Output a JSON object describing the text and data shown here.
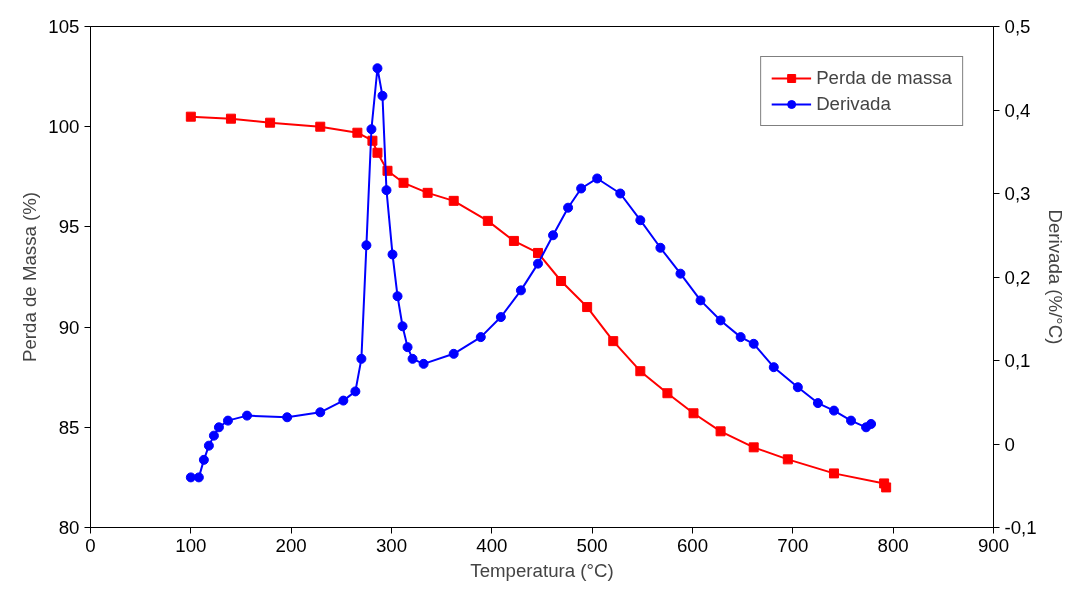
{
  "chart_data": {
    "type": "line",
    "xlabel": "Temperatura (°C)",
    "ylabel": "Perda de Massa (%)",
    "y2label": "Derivada (%/°C)",
    "xlim": [
      0,
      900
    ],
    "xticks": [
      0,
      100,
      200,
      300,
      400,
      500,
      600,
      700,
      800,
      900
    ],
    "ylim": [
      80,
      105
    ],
    "yticks": [
      80,
      85,
      90,
      95,
      100,
      105
    ],
    "y2lim": [
      -0.1,
      0.5
    ],
    "y2ticks": [
      {
        "value": -0.1,
        "label": "-0,1"
      },
      {
        "value": 0,
        "label": "0"
      },
      {
        "value": 0.1,
        "label": "0,1"
      },
      {
        "value": 0.2,
        "label": "0,2"
      },
      {
        "value": 0.3,
        "label": "0,3"
      },
      {
        "value": 0.4,
        "label": "0,4"
      },
      {
        "value": 0.5,
        "label": "0,5"
      }
    ],
    "grid": false,
    "legend": "top right",
    "series": [
      {
        "name": "Perda de massa",
        "color": "#ff0000",
        "marker": "square",
        "x": [
          100,
          140,
          179,
          229,
          266,
          281,
          286,
          296,
          312,
          336,
          362,
          396,
          422,
          446,
          469,
          495,
          521,
          548,
          575,
          601,
          628,
          661,
          695,
          741,
          791,
          793
        ],
        "values": [
          100.5,
          100.4,
          100.2,
          100.0,
          99.7,
          99.3,
          98.7,
          97.8,
          97.2,
          96.7,
          96.3,
          95.3,
          94.3,
          93.7,
          92.3,
          91.0,
          89.3,
          87.8,
          86.7,
          85.7,
          84.8,
          84.0,
          83.4,
          82.7,
          82.2,
          82.0
        ]
      },
      {
        "name": "Derivada",
        "color": "#0000ff",
        "marker": "circle",
        "axis": "y2",
        "x": [
          100,
          108,
          113,
          118,
          123,
          128,
          137,
          156,
          196,
          229,
          252,
          264,
          270,
          275,
          280,
          286,
          291,
          295,
          301,
          306,
          311,
          316,
          321,
          332,
          362,
          389,
          409,
          429,
          446,
          461,
          476,
          489,
          505,
          528,
          548,
          568,
          588,
          608,
          628,
          648,
          661,
          681,
          705,
          725,
          741,
          758,
          773,
          778
        ],
        "values": [
          -0.04,
          -0.04,
          -0.019,
          -0.002,
          0.01,
          0.02,
          0.028,
          0.034,
          0.032,
          0.038,
          0.052,
          0.063,
          0.102,
          0.238,
          0.377,
          0.45,
          0.417,
          0.304,
          0.227,
          0.177,
          0.141,
          0.116,
          0.102,
          0.096,
          0.108,
          0.128,
          0.152,
          0.184,
          0.216,
          0.25,
          0.283,
          0.306,
          0.318,
          0.3,
          0.268,
          0.235,
          0.204,
          0.172,
          0.148,
          0.128,
          0.12,
          0.092,
          0.068,
          0.049,
          0.04,
          0.028,
          0.02,
          0.024
        ]
      }
    ]
  }
}
